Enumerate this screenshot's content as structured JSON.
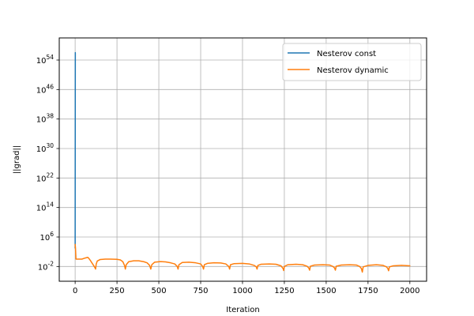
{
  "chart_data": {
    "type": "line",
    "title": "",
    "xlabel": "Iteration",
    "ylabel": "||grad||",
    "yscale": "log",
    "grid": true,
    "legend_position": "top-right",
    "xlim": [
      -95,
      2100
    ],
    "ylim_exp10": [
      -6,
      60
    ],
    "x_ticks": [
      0,
      250,
      500,
      750,
      1000,
      1250,
      1500,
      1750,
      2000
    ],
    "x_tick_labels": [
      "0",
      "250",
      "500",
      "750",
      "1000",
      "1250",
      "1500",
      "1750",
      "2000"
    ],
    "y_tick_exponents": [
      -2,
      6,
      14,
      22,
      30,
      38,
      46,
      54
    ],
    "y_tick_labels": [
      "10^-2",
      "10^6",
      "10^14",
      "10^22",
      "10^30",
      "10^38",
      "10^46",
      "10^54"
    ],
    "series": [
      {
        "name": "Nesterov const",
        "color": "#1f77b4",
        "points": [
          [
            0,
            1000.0
          ],
          [
            0.5,
            1e+30
          ],
          [
            1,
            1e+56
          ]
        ]
      },
      {
        "name": "Nesterov dynamic",
        "color": "#ff7f0e",
        "points": [
          [
            0,
            10000.0
          ],
          [
            2,
            1000.0
          ],
          [
            5,
            1
          ],
          [
            15,
            1
          ],
          [
            40,
            1
          ],
          [
            60,
            2
          ],
          [
            75,
            3
          ],
          [
            80,
            2
          ],
          [
            90,
            0.5
          ],
          [
            100,
            0.1
          ],
          [
            110,
            0.02
          ],
          [
            118,
            0.005
          ],
          [
            122,
            0.002
          ],
          [
            126,
            0.05
          ],
          [
            132,
            0.3
          ],
          [
            150,
            0.8
          ],
          [
            180,
            1
          ],
          [
            210,
            1
          ],
          [
            250,
            0.9
          ],
          [
            270,
            0.6
          ],
          [
            285,
            0.2
          ],
          [
            295,
            0.02
          ],
          [
            300,
            0.002
          ],
          [
            305,
            0.03
          ],
          [
            320,
            0.2
          ],
          [
            350,
            0.35
          ],
          [
            380,
            0.35
          ],
          [
            410,
            0.2
          ],
          [
            430,
            0.1
          ],
          [
            445,
            0.02
          ],
          [
            452,
            0.002
          ],
          [
            458,
            0.03
          ],
          [
            475,
            0.15
          ],
          [
            510,
            0.22
          ],
          [
            540,
            0.18
          ],
          [
            570,
            0.1
          ],
          [
            595,
            0.05
          ],
          [
            610,
            0.01
          ],
          [
            615,
            0.002
          ],
          [
            620,
            0.03
          ],
          [
            640,
            0.12
          ],
          [
            680,
            0.15
          ],
          [
            720,
            0.1
          ],
          [
            750,
            0.05
          ],
          [
            762,
            0.01
          ],
          [
            767,
            0.002
          ],
          [
            772,
            0.03
          ],
          [
            790,
            0.07
          ],
          [
            830,
            0.1
          ],
          [
            870,
            0.09
          ],
          [
            900,
            0.05
          ],
          [
            918,
            0.01
          ],
          [
            923,
            0.002
          ],
          [
            928,
            0.03
          ],
          [
            950,
            0.06
          ],
          [
            1000,
            0.07
          ],
          [
            1040,
            0.05
          ],
          [
            1070,
            0.02
          ],
          [
            1082,
            0.008
          ],
          [
            1087,
            0.002
          ],
          [
            1092,
            0.02
          ],
          [
            1110,
            0.04
          ],
          [
            1160,
            0.05
          ],
          [
            1200,
            0.04
          ],
          [
            1230,
            0.015
          ],
          [
            1242,
            0.003
          ],
          [
            1246,
            0.0008
          ],
          [
            1250,
            0.01
          ],
          [
            1270,
            0.03
          ],
          [
            1320,
            0.04
          ],
          [
            1360,
            0.03
          ],
          [
            1385,
            0.012
          ],
          [
            1396,
            0.004
          ],
          [
            1401,
            0.001
          ],
          [
            1406,
            0.012
          ],
          [
            1430,
            0.025
          ],
          [
            1480,
            0.03
          ],
          [
            1520,
            0.025
          ],
          [
            1540,
            0.01
          ],
          [
            1550,
            0.004
          ],
          [
            1555,
            0.001
          ],
          [
            1560,
            0.012
          ],
          [
            1590,
            0.025
          ],
          [
            1640,
            0.03
          ],
          [
            1680,
            0.025
          ],
          [
            1700,
            0.01
          ],
          [
            1710,
            0.003
          ],
          [
            1716,
            0.0003
          ],
          [
            1721,
            0.008
          ],
          [
            1750,
            0.02
          ],
          [
            1800,
            0.03
          ],
          [
            1840,
            0.02
          ],
          [
            1860,
            0.008
          ],
          [
            1868,
            0.003
          ],
          [
            1873,
            0.0007
          ],
          [
            1878,
            0.008
          ],
          [
            1900,
            0.015
          ],
          [
            1950,
            0.02
          ],
          [
            2000,
            0.015
          ]
        ]
      }
    ]
  }
}
